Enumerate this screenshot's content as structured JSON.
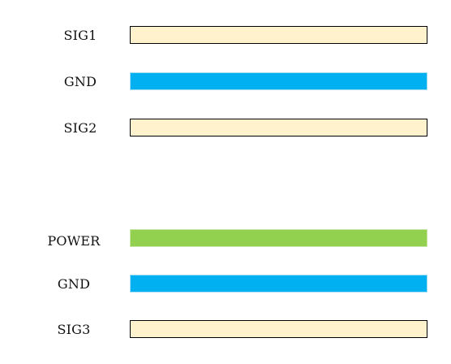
{
  "stackup": {
    "group_top": {
      "layers": [
        {
          "label": "SIG1",
          "type": "signal",
          "color": "#fff2cc"
        },
        {
          "label": "GND",
          "type": "ground",
          "color": "#00b0f0"
        },
        {
          "label": "SIG2",
          "type": "signal",
          "color": "#fff2cc"
        }
      ]
    },
    "group_bottom": {
      "layers": [
        {
          "label": "POWER",
          "type": "power",
          "color": "#92d050"
        },
        {
          "label": "GND",
          "type": "ground",
          "color": "#00b0f0"
        },
        {
          "label": "SIG3",
          "type": "signal",
          "color": "#fff2cc"
        }
      ]
    }
  }
}
